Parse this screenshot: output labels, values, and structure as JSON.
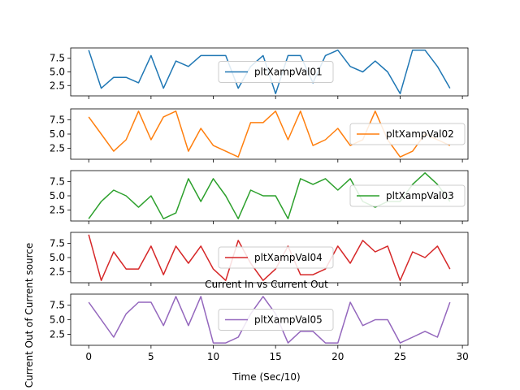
{
  "chart_data": {
    "type": "line",
    "title": "Current In vs Current Out",
    "xlabel": "Time (Sec/10)",
    "ylabel": "Current Out of Current source",
    "xlim": [
      -1.45,
      30.45
    ],
    "ylim": [
      0.6,
      9.4
    ],
    "x_ticks": [
      0,
      5,
      10,
      15,
      20,
      25,
      30
    ],
    "y_ticks": [
      2.5,
      5.0,
      7.5
    ],
    "x": [
      0,
      1,
      2,
      3,
      4,
      5,
      6,
      7,
      8,
      9,
      10,
      11,
      12,
      13,
      14,
      15,
      16,
      17,
      18,
      19,
      20,
      21,
      22,
      23,
      24,
      25,
      26,
      27,
      28,
      29
    ],
    "series": [
      {
        "name": "pltXampVal01",
        "color": "#1f77b4",
        "legend": "center",
        "values": [
          9,
          2,
          4,
          4,
          3,
          8,
          2,
          7,
          6,
          8,
          8,
          8,
          2,
          6,
          8,
          1,
          8,
          8,
          3,
          8,
          9,
          6,
          5,
          7,
          5,
          1,
          9,
          9,
          6,
          2
        ]
      },
      {
        "name": "pltXampVal02",
        "color": "#ff7f0e",
        "legend": "right",
        "values": [
          8,
          5,
          2,
          4,
          9,
          4,
          8,
          9,
          2,
          6,
          3,
          2,
          1,
          7,
          7,
          9,
          4,
          9,
          3,
          4,
          6,
          3,
          4,
          9,
          4,
          1,
          2,
          5,
          4,
          3
        ]
      },
      {
        "name": "pltXampVal03",
        "color": "#2ca02c",
        "legend": "right",
        "values": [
          1,
          4,
          6,
          5,
          3,
          5,
          1,
          2,
          8,
          4,
          8,
          5,
          1,
          6,
          5,
          5,
          1,
          8,
          7,
          8,
          6,
          8,
          4,
          3,
          4,
          4,
          7,
          9,
          7,
          4
        ]
      },
      {
        "name": "pltXampVal04",
        "color": "#d62728",
        "legend": "center",
        "values": [
          9,
          1,
          6,
          3,
          3,
          7,
          2,
          7,
          4,
          7,
          3,
          1,
          8,
          4,
          1,
          3,
          7,
          2,
          2,
          3,
          7,
          4,
          8,
          6,
          7,
          1,
          6,
          5,
          7,
          3
        ]
      },
      {
        "name": "pltXampVal05",
        "color": "#9467bd",
        "legend": "center",
        "values": [
          8,
          5,
          2,
          6,
          8,
          8,
          4,
          9,
          4,
          9,
          1,
          1,
          2,
          6,
          9,
          6,
          1,
          3,
          3,
          1,
          1,
          8,
          4,
          5,
          5,
          1,
          2,
          3,
          2,
          8
        ]
      }
    ]
  }
}
